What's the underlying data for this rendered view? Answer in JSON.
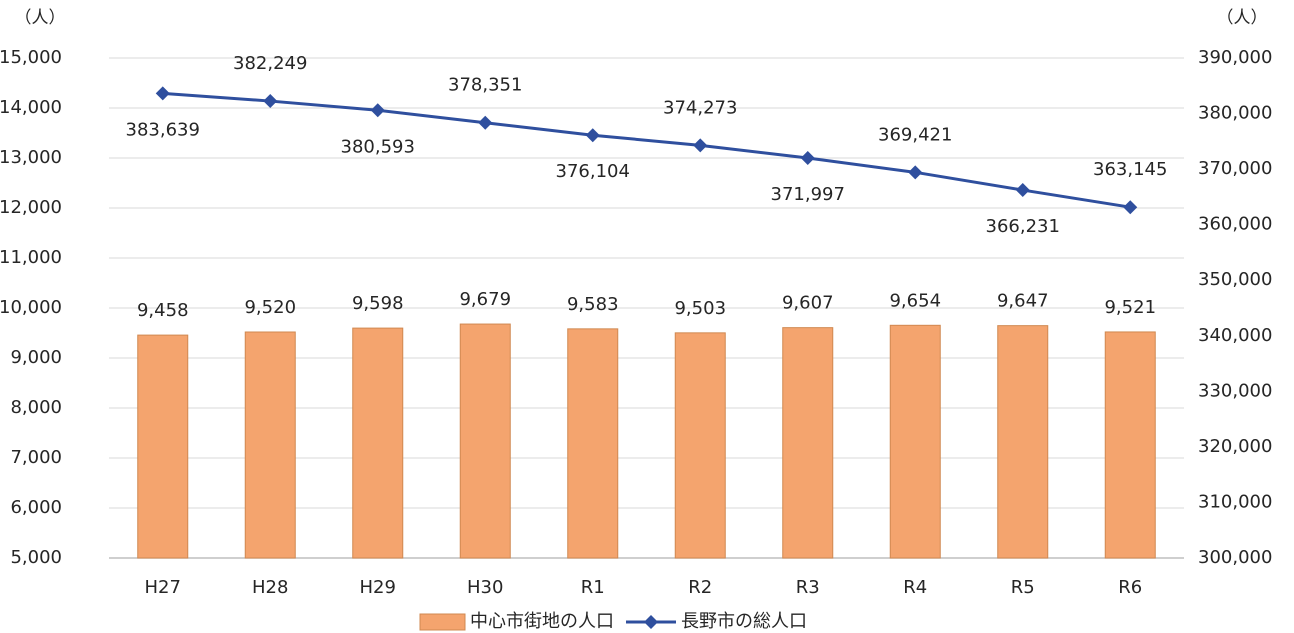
{
  "chart_data": {
    "type": "bar",
    "y_unit": "（人）",
    "y2_unit": "（人）",
    "categories": [
      "H27",
      "H28",
      "H29",
      "H30",
      "R1",
      "R2",
      "R3",
      "R4",
      "R5",
      "R6"
    ],
    "series": [
      {
        "name": "中心市街地の人口",
        "type": "bar",
        "axis": "y",
        "color": "#f4a46e",
        "values": [
          9458,
          9520,
          9598,
          9679,
          9583,
          9503,
          9607,
          9654,
          9647,
          9521
        ],
        "value_labels": [
          "9,458",
          "9,520",
          "9,598",
          "9,679",
          "9,583",
          "9,503",
          "9,607",
          "9,654",
          "9,647",
          "9,521"
        ]
      },
      {
        "name": "長野市の総人口",
        "type": "line",
        "axis": "y2",
        "color": "#2f4f9e",
        "values": [
          383639,
          382249,
          380593,
          378351,
          376104,
          374273,
          371997,
          369421,
          366231,
          363145
        ],
        "value_labels": [
          "383,639",
          "382,249",
          "380,593",
          "378,351",
          "376,104",
          "374,273",
          "371,997",
          "369,421",
          "366,231",
          "363,145"
        ]
      }
    ],
    "ylim": [
      5000,
      15000
    ],
    "yticks": [
      {
        "value": 5000,
        "label": "5,000"
      },
      {
        "value": 6000,
        "label": "6,000"
      },
      {
        "value": 7000,
        "label": "7,000"
      },
      {
        "value": 8000,
        "label": "8,000"
      },
      {
        "value": 9000,
        "label": "9,000"
      },
      {
        "value": 10000,
        "label": "10,000"
      },
      {
        "value": 11000,
        "label": "11,000"
      },
      {
        "value": 12000,
        "label": "12,000"
      },
      {
        "value": 13000,
        "label": "13,000"
      },
      {
        "value": 14000,
        "label": "14,000"
      },
      {
        "value": 15000,
        "label": "15,000"
      }
    ],
    "y2lim": [
      300000,
      390000
    ],
    "y2ticks": [
      {
        "value": 300000,
        "label": "300,000"
      },
      {
        "value": 310000,
        "label": "310,000"
      },
      {
        "value": 320000,
        "label": "320,000"
      },
      {
        "value": 330000,
        "label": "330,000"
      },
      {
        "value": 340000,
        "label": "340,000"
      },
      {
        "value": 350000,
        "label": "350,000"
      },
      {
        "value": 360000,
        "label": "360,000"
      },
      {
        "value": 370000,
        "label": "370,000"
      },
      {
        "value": 380000,
        "label": "380,000"
      },
      {
        "value": 390000,
        "label": "390,000"
      }
    ],
    "grid": true,
    "legend": "bottom"
  }
}
